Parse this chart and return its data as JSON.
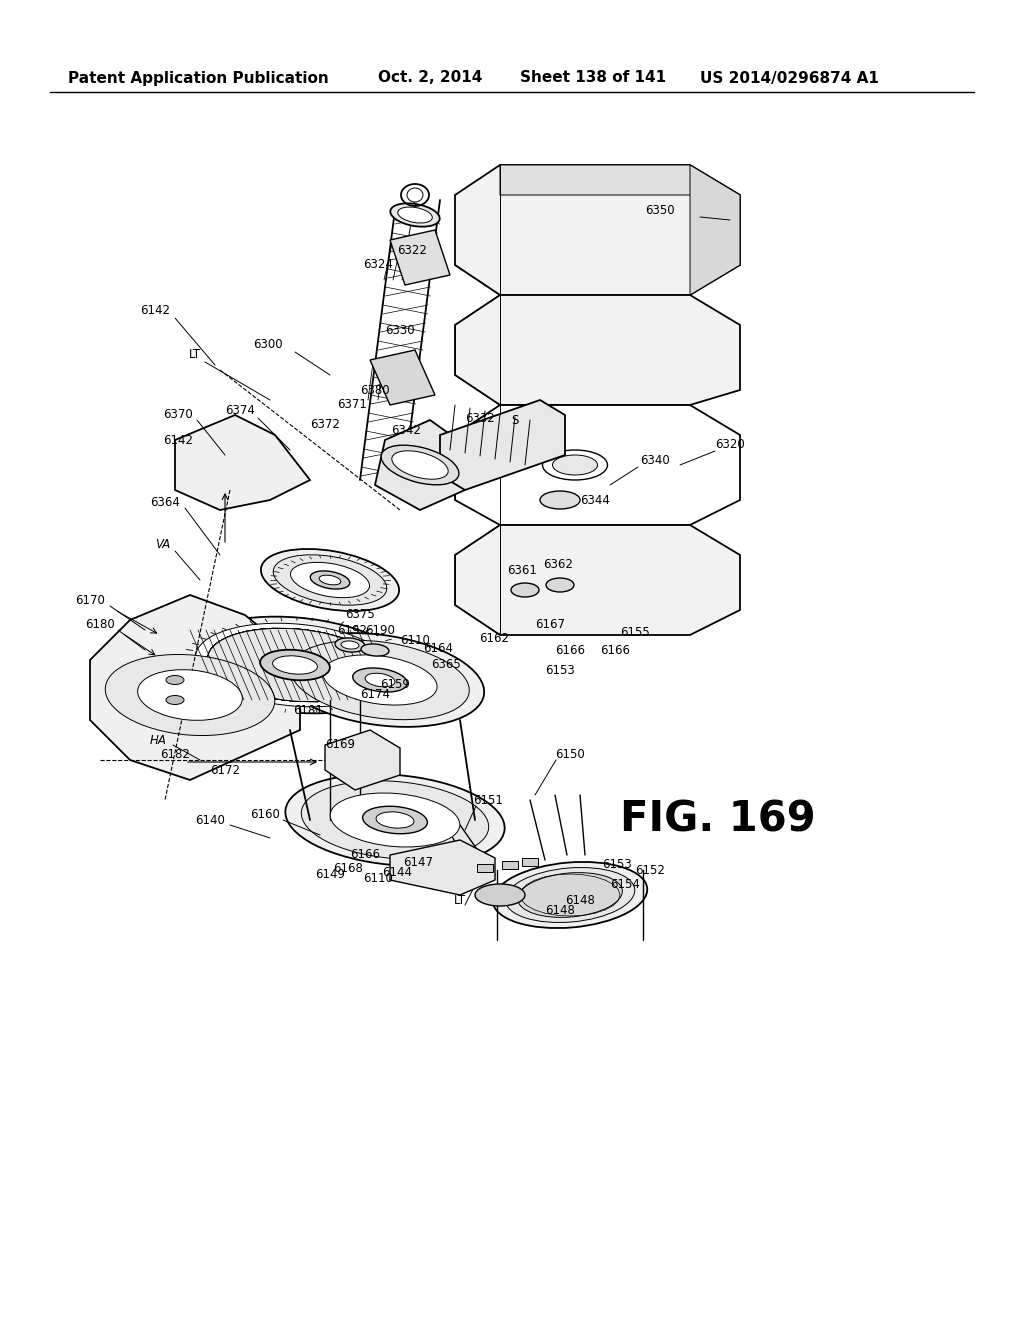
{
  "bg_color": "#ffffff",
  "header_text": "Patent Application Publication",
  "header_date": "Oct. 2, 2014",
  "header_sheet": "Sheet 138 of 141",
  "header_patent": "US 2014/0296874 A1",
  "fig_label": "FIG. 169",
  "lw_main": 1.3,
  "lw_thin": 0.7,
  "lw_med": 1.0,
  "fs": 8.5
}
